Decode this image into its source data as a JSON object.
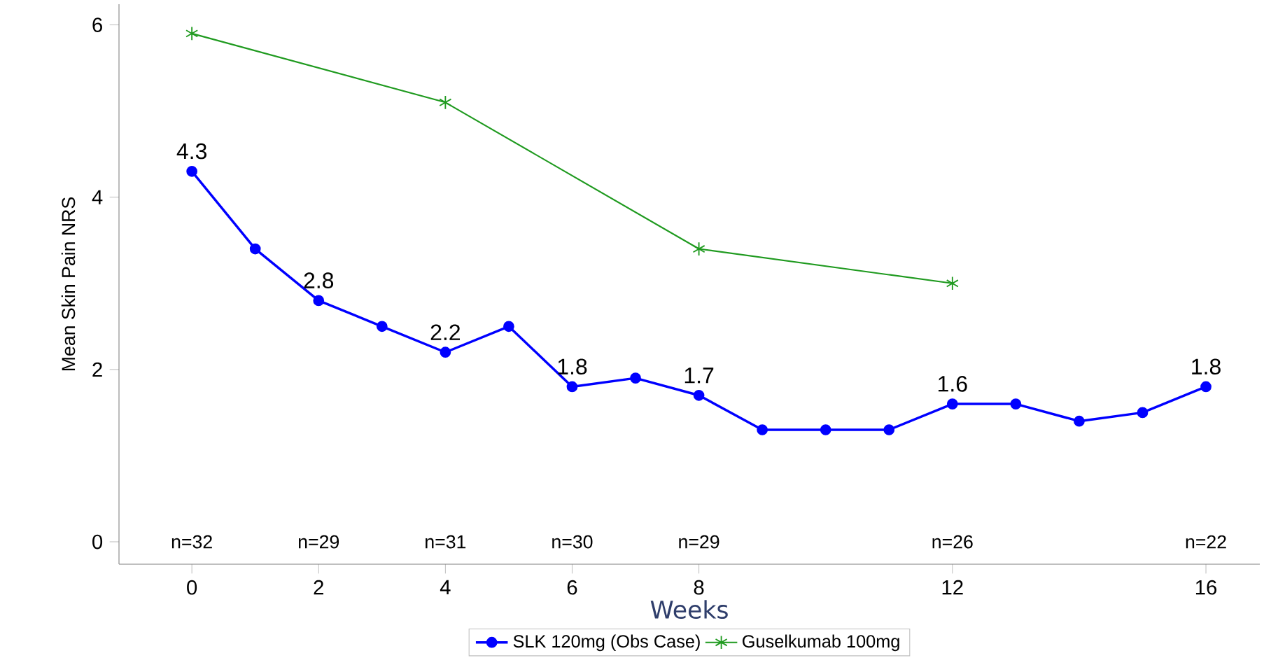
{
  "chart_data": {
    "type": "line",
    "xlabel": "Weeks",
    "ylabel": "Mean Skin Pain NRS",
    "x": [
      0,
      1,
      2,
      3,
      4,
      5,
      6,
      7,
      8,
      9,
      10,
      11,
      12,
      13,
      14,
      15,
      16
    ],
    "series": [
      {
        "name": "SLK 120mg (Obs Case)",
        "color": "#0000ff",
        "marker": "circle",
        "values": [
          4.3,
          3.4,
          2.8,
          2.5,
          2.2,
          2.5,
          1.8,
          1.9,
          1.7,
          1.3,
          1.3,
          1.3,
          1.6,
          1.6,
          1.4,
          1.5,
          1.8
        ],
        "value_labels": [
          "4.3",
          null,
          "2.8",
          null,
          "2.2",
          null,
          "1.8",
          null,
          "1.7",
          null,
          null,
          null,
          "1.6",
          null,
          null,
          null,
          "1.8"
        ]
      },
      {
        "name": "Guselkumab 100mg",
        "color": "#1f9a1f",
        "marker": "cross",
        "x": [
          0,
          4,
          8,
          12
        ],
        "values": [
          5.9,
          5.1,
          3.4,
          3.0
        ]
      }
    ],
    "annotations": [
      "n=32",
      "n=29",
      "n=31",
      "n=30",
      "n=29",
      "n=26",
      "n=22"
    ],
    "xlim": [
      -1.15,
      16.85
    ],
    "ylim": [
      -0.26,
      6.24
    ],
    "xticks": [
      0,
      2,
      4,
      6,
      8,
      12,
      16
    ],
    "yticks": [
      0,
      2,
      4,
      6
    ],
    "grid": false,
    "legend": "bottom",
    "line_style": "solid"
  }
}
